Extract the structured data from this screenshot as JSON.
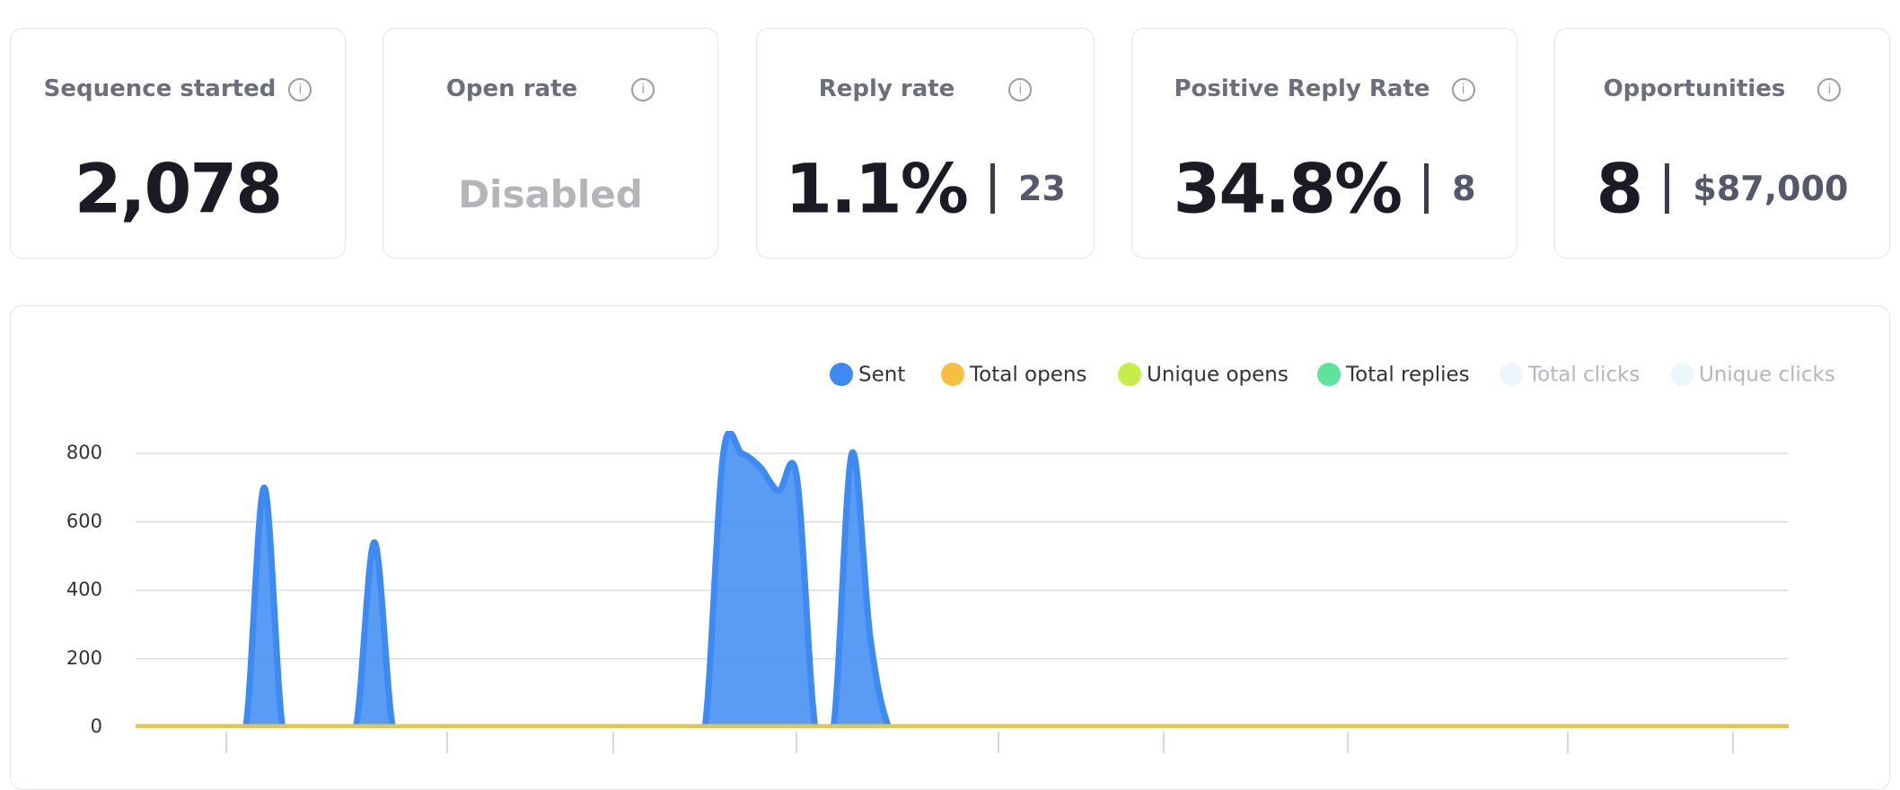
{
  "cards": [
    {
      "title": "Sequence started",
      "value": "2,078"
    },
    {
      "title": "Open rate",
      "value": "Disabled"
    },
    {
      "title": "Reply rate",
      "value": "1.1%",
      "secondary": "23"
    },
    {
      "title": "Positive Reply Rate",
      "value": "34.8%",
      "secondary": "8"
    },
    {
      "title": "Opportunities",
      "value": "8",
      "secondary": "$87,000"
    }
  ],
  "chart_data": {
    "type": "area",
    "categories": [
      null,
      null,
      null,
      null,
      null,
      null,
      null,
      null,
      null,
      null,
      null,
      null,
      null,
      null,
      null,
      null,
      null,
      null,
      null,
      null,
      null,
      null,
      null,
      null,
      null,
      null,
      null,
      null,
      null,
      null,
      null,
      null,
      null,
      null,
      null,
      null,
      null,
      null,
      null,
      null,
      null,
      null,
      null,
      null,
      null,
      null,
      null,
      null,
      null,
      null,
      null,
      null,
      null,
      null,
      null,
      null,
      null,
      null,
      null,
      null,
      null,
      null,
      null,
      null,
      null,
      null,
      null,
      null,
      null,
      null,
      null,
      null,
      null,
      null,
      null,
      null,
      null,
      null,
      null,
      null,
      null,
      null,
      null,
      null,
      null,
      null,
      null,
      null,
      null,
      null,
      null
    ],
    "series": [
      {
        "name": "Sent",
        "color": "#3d8bf2",
        "values": [
          0,
          0,
          0,
          0,
          0,
          0,
          0,
          700,
          0,
          0,
          0,
          0,
          0,
          540,
          0,
          0,
          0,
          0,
          0,
          0,
          0,
          0,
          0,
          0,
          0,
          0,
          0,
          0,
          0,
          0,
          0,
          0,
          800,
          800,
          760,
          690,
          730,
          0,
          0,
          800,
          260,
          0,
          0,
          0,
          0,
          0,
          0,
          0,
          0,
          0,
          0,
          0,
          0,
          0,
          0,
          0,
          0,
          0,
          0,
          0,
          0,
          0,
          0,
          0,
          0,
          0,
          0,
          0,
          0,
          0,
          0,
          0,
          0,
          0,
          0,
          0,
          0,
          0,
          0,
          0,
          0,
          0,
          0,
          0,
          0,
          0,
          0,
          0,
          0,
          0,
          0
        ]
      },
      {
        "name": "Total opens",
        "color": "#f5bf42",
        "values": [
          0,
          0,
          0,
          0,
          0,
          0,
          0,
          0,
          0,
          0,
          0,
          0,
          0,
          0,
          0,
          0,
          0,
          0,
          0,
          0,
          0,
          0,
          0,
          0,
          0,
          0,
          0,
          0,
          0,
          0,
          0,
          0,
          0,
          0,
          0,
          0,
          0,
          0,
          0,
          0,
          0,
          0,
          0,
          0,
          0,
          0,
          0,
          0,
          0,
          0,
          0,
          0,
          0,
          0,
          0,
          0,
          0,
          0,
          0,
          0,
          0,
          0,
          0,
          0,
          0,
          0,
          0,
          0,
          0,
          0,
          0,
          0,
          0,
          0,
          0,
          0,
          0,
          0,
          0,
          0,
          0,
          0,
          0,
          0,
          0,
          0,
          0,
          0,
          0,
          0,
          0
        ]
      },
      {
        "name": "Unique opens",
        "color": "#c6ee4a",
        "values": [
          0,
          0,
          0,
          0,
          0,
          0,
          0,
          0,
          0,
          0,
          0,
          0,
          0,
          0,
          0,
          0,
          0,
          0,
          0,
          0,
          0,
          0,
          0,
          0,
          0,
          0,
          0,
          0,
          0,
          0,
          0,
          0,
          0,
          0,
          0,
          0,
          0,
          0,
          0,
          0,
          0,
          0,
          0,
          0,
          0,
          0,
          0,
          0,
          0,
          0,
          0,
          0,
          0,
          0,
          0,
          0,
          0,
          0,
          0,
          0,
          0,
          0,
          0,
          0,
          0,
          0,
          0,
          0,
          0,
          0,
          0,
          0,
          0,
          0,
          0,
          0,
          0,
          0,
          0,
          0,
          0,
          0,
          0,
          0,
          0,
          0,
          0,
          0,
          0,
          0,
          0
        ]
      },
      {
        "name": "Total replies",
        "color": "#5ee39b",
        "values": [
          0,
          0,
          0,
          0,
          0,
          0,
          0,
          0,
          0,
          0,
          0,
          0,
          0,
          0,
          0,
          0,
          0,
          0,
          0,
          0,
          0,
          0,
          0,
          0,
          0,
          0,
          0,
          0,
          0,
          0,
          0,
          0,
          0,
          0,
          0,
          0,
          0,
          0,
          0,
          0,
          0,
          0,
          0,
          0,
          0,
          0,
          0,
          0,
          0,
          0,
          0,
          0,
          0,
          0,
          0,
          0,
          0,
          0,
          0,
          0,
          0,
          0,
          0,
          0,
          0,
          0,
          0,
          0,
          0,
          0,
          0,
          0,
          0,
          0,
          0,
          0,
          0,
          0,
          0,
          0,
          0,
          0,
          0,
          0,
          0,
          0,
          0,
          0,
          0,
          0,
          0
        ]
      },
      {
        "name": "Total clicks",
        "color": "#eef5fd",
        "visible": false
      },
      {
        "name": "Unique clicks",
        "color": "#eaf7fb",
        "visible": false
      }
    ],
    "ylim": [
      0,
      800
    ],
    "yticks": [
      0,
      200,
      400,
      600,
      800
    ],
    "grid": true
  }
}
